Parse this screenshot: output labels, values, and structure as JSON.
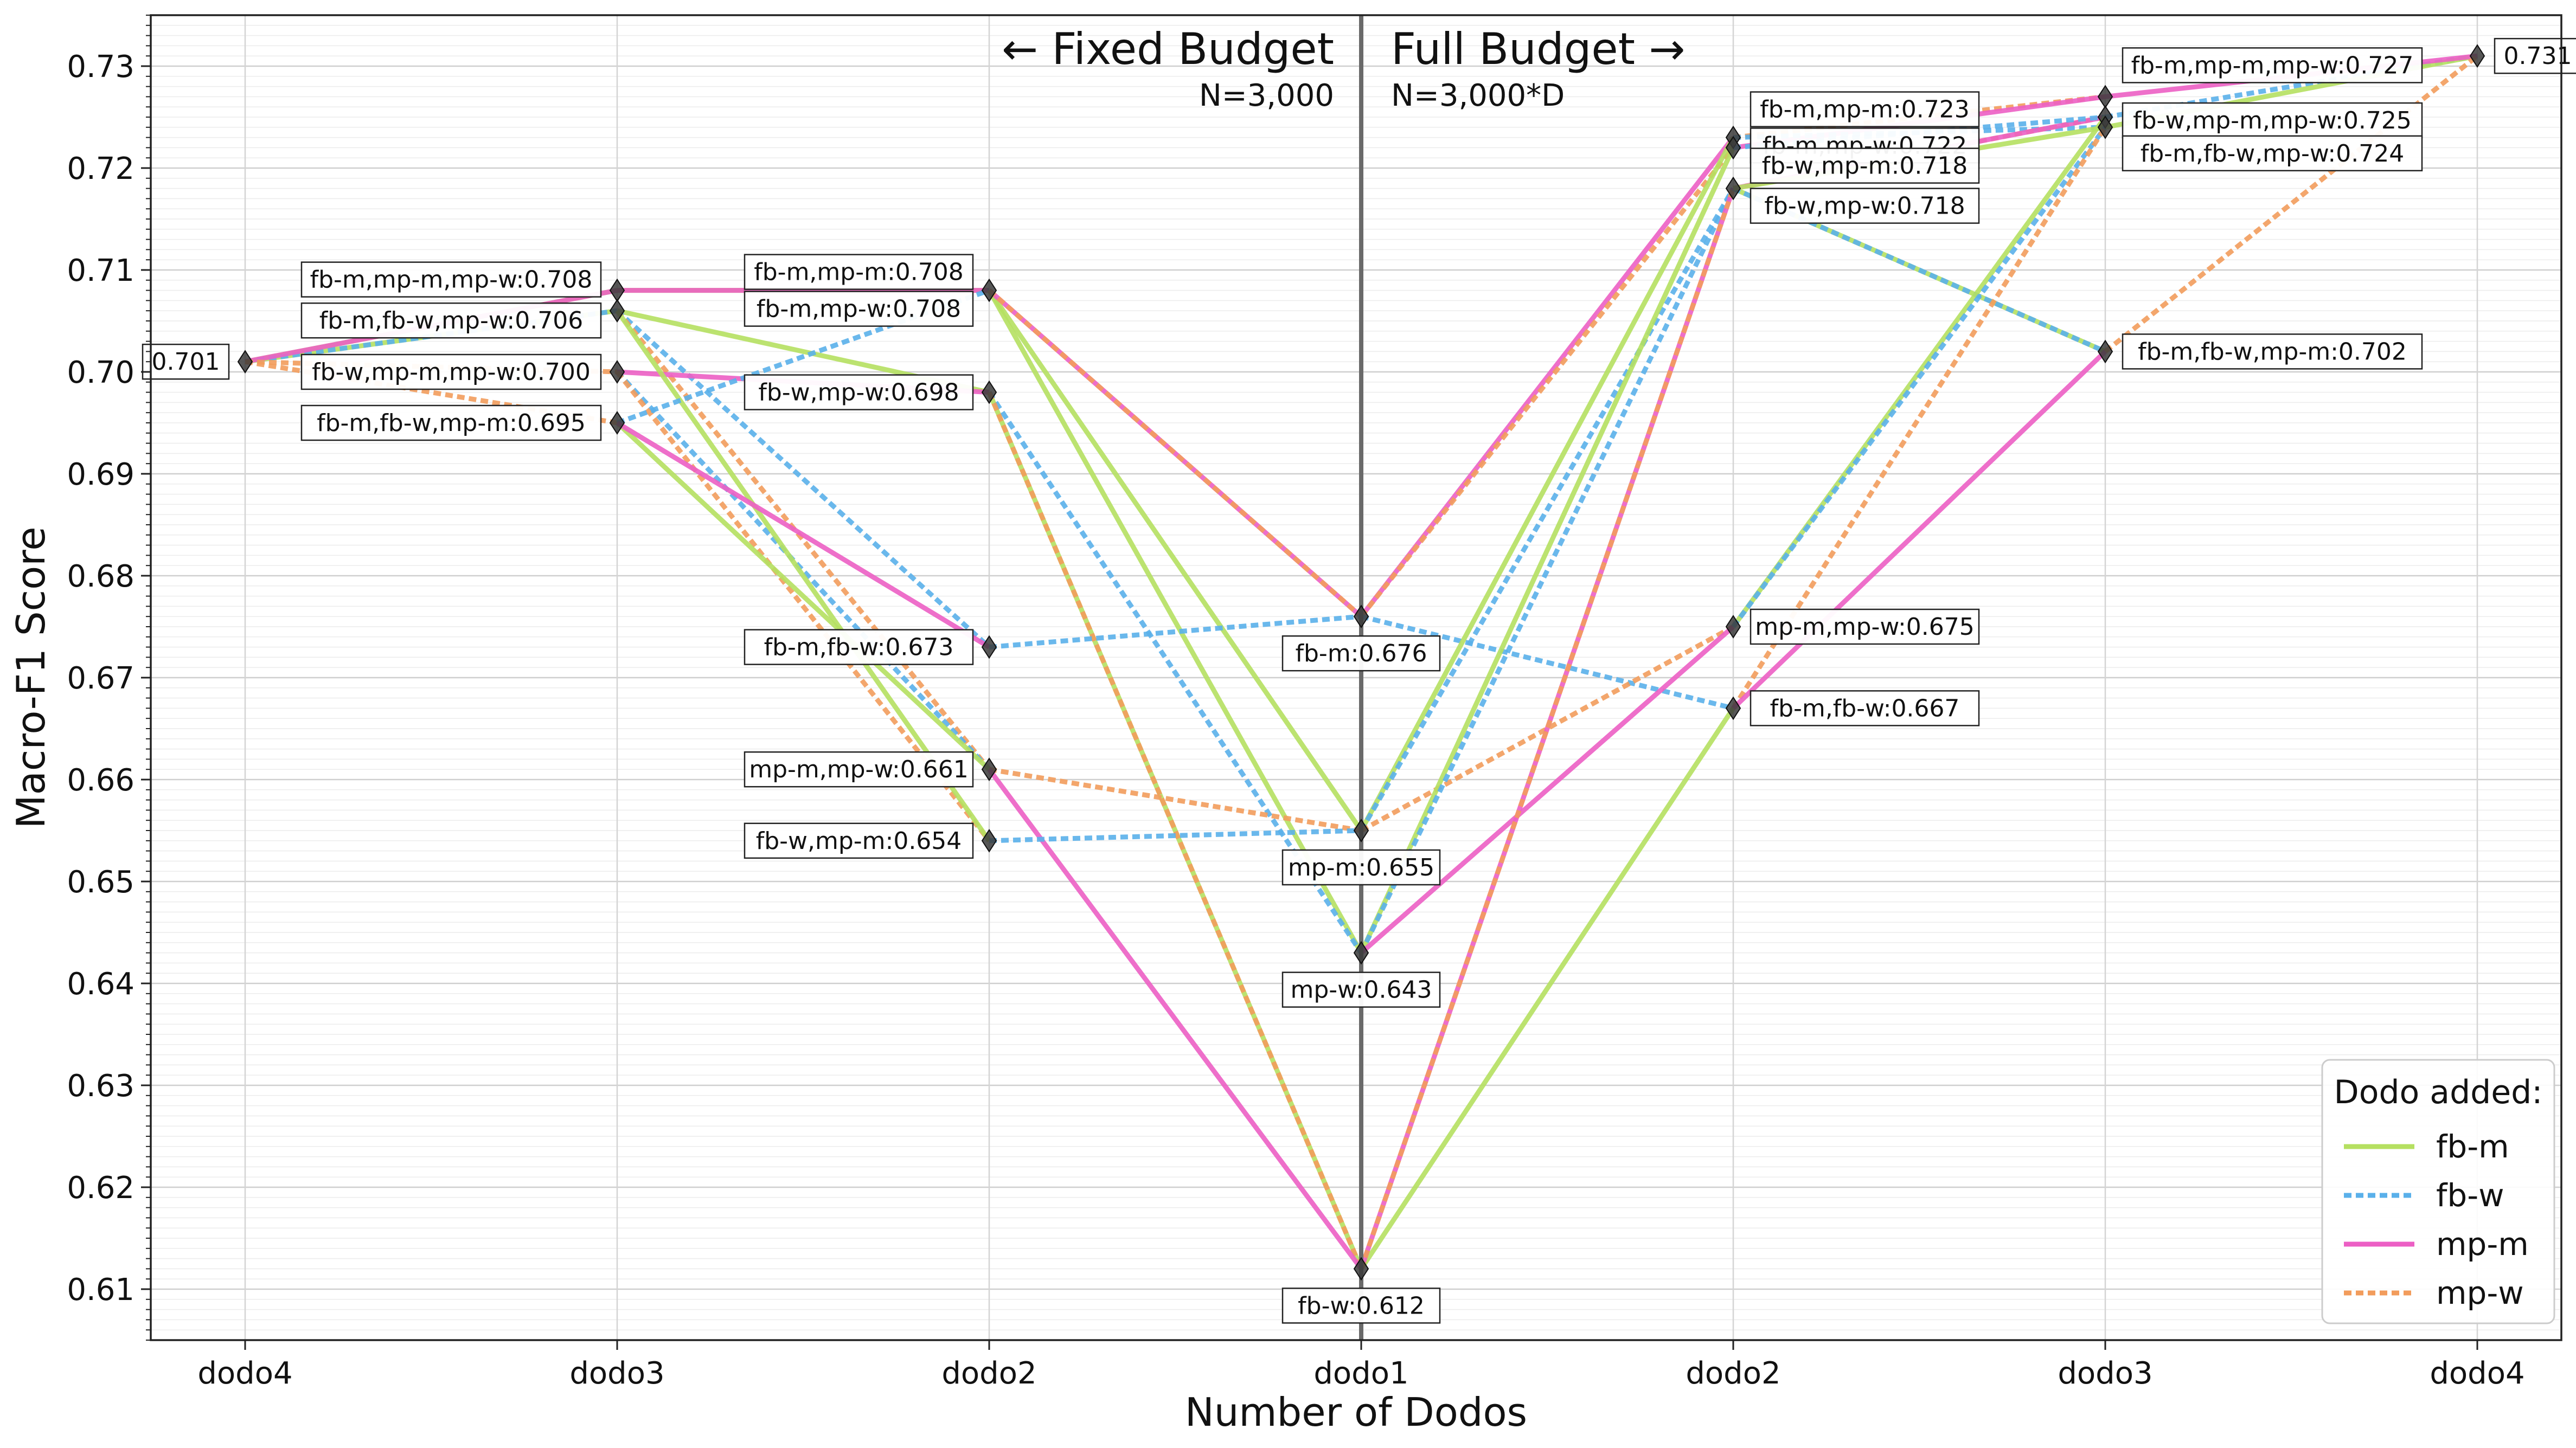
{
  "chart_data": {
    "type": "line",
    "xlabel": "Number of Dodos",
    "ylabel": "Macro-F1 Score",
    "categories": [
      "dodo4",
      "dodo3",
      "dodo2",
      "dodo1",
      "dodo2",
      "dodo3",
      "dodo4"
    ],
    "ylim": [
      0.605,
      0.735
    ],
    "yticks": [
      0.61,
      0.62,
      0.63,
      0.64,
      0.65,
      0.66,
      0.67,
      0.68,
      0.69,
      0.7,
      0.71,
      0.72,
      0.73
    ],
    "ytick_labels": [
      "0.61",
      "0.62",
      "0.63",
      "0.64",
      "0.65",
      "0.66",
      "0.67",
      "0.68",
      "0.69",
      "0.70",
      "0.71",
      "0.72",
      "0.73"
    ],
    "grid": true,
    "annotations": {
      "left_title": "← Fixed Budget",
      "left_subtitle": "N=3,000",
      "right_title": "Full Budget →",
      "right_subtitle": "N=3,000*D"
    },
    "legend": {
      "title": "Dodo added:",
      "placement": "bottom-right",
      "entries": [
        {
          "name": "fb-m",
          "color": "#b5e061",
          "dash": "solid"
        },
        {
          "name": "fb-w",
          "color": "#5ab0ea",
          "dash": "dotted"
        },
        {
          "name": "mp-m",
          "color": "#ec5fc4",
          "dash": "solid"
        },
        {
          "name": "mp-w",
          "color": "#f29c5c",
          "dash": "dotted"
        }
      ]
    },
    "points": [
      {
        "x": 0,
        "y": 0.701,
        "label": "0.701",
        "side": "left"
      },
      {
        "x": 1,
        "y": 0.708,
        "label": "fb-m,mp-m,mp-w:0.708",
        "side": "left"
      },
      {
        "x": 1,
        "y": 0.706,
        "label": "fb-m,fb-w,mp-w:0.706",
        "side": "left"
      },
      {
        "x": 1,
        "y": 0.7,
        "label": "fb-w,mp-m,mp-w:0.700",
        "side": "left"
      },
      {
        "x": 1,
        "y": 0.695,
        "label": "fb-m,fb-w,mp-m:0.695",
        "side": "left"
      },
      {
        "x": 2,
        "y": 0.708,
        "label": "fb-m,mp-m:0.708",
        "side": "left"
      },
      {
        "x": 2,
        "y": 0.708,
        "label": "fb-m,mp-w:0.708",
        "side": "left"
      },
      {
        "x": 2,
        "y": 0.698,
        "label": "fb-w,mp-w:0.698",
        "side": "left"
      },
      {
        "x": 2,
        "y": 0.673,
        "label": "fb-m,fb-w:0.673",
        "side": "left"
      },
      {
        "x": 2,
        "y": 0.661,
        "label": "mp-m,mp-w:0.661",
        "side": "left"
      },
      {
        "x": 2,
        "y": 0.654,
        "label": "fb-w,mp-m:0.654",
        "side": "left"
      },
      {
        "x": 3,
        "y": 0.676,
        "label": "fb-m:0.676",
        "side": "below"
      },
      {
        "x": 3,
        "y": 0.655,
        "label": "mp-m:0.655",
        "side": "below"
      },
      {
        "x": 3,
        "y": 0.643,
        "label": "mp-w:0.643",
        "side": "below"
      },
      {
        "x": 3,
        "y": 0.612,
        "label": "fb-w:0.612",
        "side": "below"
      },
      {
        "x": 4,
        "y": 0.723,
        "label": "fb-m,mp-m:0.723",
        "side": "right"
      },
      {
        "x": 4,
        "y": 0.722,
        "label": "fb-m,mp-w:0.722",
        "side": "right"
      },
      {
        "x": 4,
        "y": 0.718,
        "label": "fb-w,mp-m:0.718",
        "side": "right"
      },
      {
        "x": 4,
        "y": 0.718,
        "label": "fb-w,mp-w:0.718",
        "side": "right"
      },
      {
        "x": 4,
        "y": 0.675,
        "label": "mp-m,mp-w:0.675",
        "side": "right"
      },
      {
        "x": 4,
        "y": 0.667,
        "label": "fb-m,fb-w:0.667",
        "side": "right"
      },
      {
        "x": 5,
        "y": 0.727,
        "label": "fb-m,mp-m,mp-w:0.727",
        "side": "right"
      },
      {
        "x": 5,
        "y": 0.725,
        "label": "fb-w,mp-m,mp-w:0.725",
        "side": "right"
      },
      {
        "x": 5,
        "y": 0.724,
        "label": "fb-m,fb-w,mp-w:0.724",
        "side": "right"
      },
      {
        "x": 5,
        "y": 0.702,
        "label": "fb-m,fb-w,mp-m:0.702",
        "side": "right"
      },
      {
        "x": 6,
        "y": 0.731,
        "label": "0.731",
        "side": "right"
      }
    ],
    "segments": [
      {
        "series": "fb-m",
        "from": [
          0,
          0.701
        ],
        "to": [
          1,
          0.706
        ]
      },
      {
        "series": "fb-m",
        "from": [
          0,
          0.701
        ],
        "to": [
          1,
          0.708
        ]
      },
      {
        "series": "fb-w",
        "from": [
          0,
          0.701
        ],
        "to": [
          1,
          0.706
        ]
      },
      {
        "series": "mp-m",
        "from": [
          0,
          0.701
        ],
        "to": [
          1,
          0.708
        ]
      },
      {
        "series": "mp-w",
        "from": [
          0,
          0.701
        ],
        "to": [
          1,
          0.7
        ]
      },
      {
        "series": "mp-w",
        "from": [
          0,
          0.701
        ],
        "to": [
          1,
          0.695
        ]
      },
      {
        "series": "fb-m",
        "from": [
          1,
          0.708
        ],
        "to": [
          2,
          0.708
        ]
      },
      {
        "series": "mp-m",
        "from": [
          1,
          0.708
        ],
        "to": [
          2,
          0.708
        ]
      },
      {
        "series": "fb-m",
        "from": [
          1,
          0.706
        ],
        "to": [
          2,
          0.698
        ]
      },
      {
        "series": "fb-w",
        "from": [
          1,
          0.706
        ],
        "to": [
          2,
          0.673
        ]
      },
      {
        "series": "mp-w",
        "from": [
          1,
          0.706
        ],
        "to": [
          2,
          0.661
        ]
      },
      {
        "series": "fb-w",
        "from": [
          1,
          0.7
        ],
        "to": [
          2,
          0.661
        ]
      },
      {
        "series": "mp-m",
        "from": [
          1,
          0.7
        ],
        "to": [
          2,
          0.698
        ]
      },
      {
        "series": "mp-w",
        "from": [
          1,
          0.7
        ],
        "to": [
          2,
          0.654
        ]
      },
      {
        "series": "fb-m",
        "from": [
          1,
          0.706
        ],
        "to": [
          2,
          0.654
        ]
      },
      {
        "series": "fb-m",
        "from": [
          1,
          0.695
        ],
        "to": [
          2,
          0.661
        ]
      },
      {
        "series": "fb-w",
        "from": [
          1,
          0.695
        ],
        "to": [
          2,
          0.708
        ]
      },
      {
        "series": "mp-m",
        "from": [
          1,
          0.695
        ],
        "to": [
          2,
          0.673
        ]
      },
      {
        "series": "fb-m",
        "from": [
          2,
          0.708
        ],
        "to": [
          3,
          0.655
        ]
      },
      {
        "series": "fb-m",
        "from": [
          2,
          0.708
        ],
        "to": [
          3,
          0.643
        ]
      },
      {
        "series": "fb-m",
        "from": [
          2,
          0.698
        ],
        "to": [
          3,
          0.612
        ]
      },
      {
        "series": "mp-m",
        "from": [
          2,
          0.708
        ],
        "to": [
          3,
          0.676
        ]
      },
      {
        "series": "mp-w",
        "from": [
          2,
          0.708
        ],
        "to": [
          3,
          0.676
        ]
      },
      {
        "series": "fb-w",
        "from": [
          2,
          0.698
        ],
        "to": [
          3,
          0.643
        ]
      },
      {
        "series": "mp-w",
        "from": [
          2,
          0.698
        ],
        "to": [
          3,
          0.612
        ]
      },
      {
        "series": "fb-w",
        "from": [
          2,
          0.673
        ],
        "to": [
          3,
          0.676
        ]
      },
      {
        "series": "mp-w",
        "from": [
          2,
          0.661
        ],
        "to": [
          3,
          0.655
        ]
      },
      {
        "series": "mp-m",
        "from": [
          2,
          0.661
        ],
        "to": [
          3,
          0.612
        ]
      },
      {
        "series": "fb-w",
        "from": [
          2,
          0.654
        ],
        "to": [
          3,
          0.655
        ]
      },
      {
        "series": "mp-m",
        "from": [
          3,
          0.676
        ],
        "to": [
          4,
          0.723
        ]
      },
      {
        "series": "mp-w",
        "from": [
          3,
          0.676
        ],
        "to": [
          4,
          0.722
        ]
      },
      {
        "series": "fb-w",
        "from": [
          3,
          0.676
        ],
        "to": [
          4,
          0.667
        ]
      },
      {
        "series": "fb-m",
        "from": [
          3,
          0.655
        ],
        "to": [
          4,
          0.723
        ]
      },
      {
        "series": "fb-w",
        "from": [
          3,
          0.655
        ],
        "to": [
          4,
          0.718
        ]
      },
      {
        "series": "mp-w",
        "from": [
          3,
          0.655
        ],
        "to": [
          4,
          0.675
        ]
      },
      {
        "series": "fb-m",
        "from": [
          3,
          0.643
        ],
        "to": [
          4,
          0.722
        ]
      },
      {
        "series": "fb-w",
        "from": [
          3,
          0.643
        ],
        "to": [
          4,
          0.718
        ]
      },
      {
        "series": "mp-m",
        "from": [
          3,
          0.643
        ],
        "to": [
          4,
          0.675
        ]
      },
      {
        "series": "fb-m",
        "from": [
          3,
          0.612
        ],
        "to": [
          4,
          0.667
        ]
      },
      {
        "series": "mp-m",
        "from": [
          3,
          0.612
        ],
        "to": [
          4,
          0.718
        ]
      },
      {
        "series": "mp-w",
        "from": [
          3,
          0.612
        ],
        "to": [
          4,
          0.718
        ]
      },
      {
        "series": "mp-w",
        "from": [
          4,
          0.723
        ],
        "to": [
          5,
          0.727
        ]
      },
      {
        "series": "mp-m",
        "from": [
          4,
          0.722
        ],
        "to": [
          5,
          0.727
        ]
      },
      {
        "series": "fb-w",
        "from": [
          4,
          0.723
        ],
        "to": [
          5,
          0.724
        ]
      },
      {
        "series": "fb-m",
        "from": [
          4,
          0.718
        ],
        "to": [
          5,
          0.702
        ]
      },
      {
        "series": "mp-w",
        "from": [
          4,
          0.718
        ],
        "to": [
          5,
          0.725
        ]
      },
      {
        "series": "fb-w",
        "from": [
          4,
          0.718
        ],
        "to": [
          5,
          0.702
        ]
      },
      {
        "series": "mp-m",
        "from": [
          4,
          0.718
        ],
        "to": [
          5,
          0.725
        ]
      },
      {
        "series": "fb-m",
        "from": [
          4,
          0.718
        ],
        "to": [
          5,
          0.724
        ]
      },
      {
        "series": "fb-w",
        "from": [
          4,
          0.722
        ],
        "to": [
          5,
          0.725
        ]
      },
      {
        "series": "fb-m",
        "from": [
          4,
          0.675
        ],
        "to": [
          5,
          0.725
        ]
      },
      {
        "series": "fb-w",
        "from": [
          4,
          0.675
        ],
        "to": [
          5,
          0.724
        ]
      },
      {
        "series": "mp-w",
        "from": [
          4,
          0.667
        ],
        "to": [
          5,
          0.724
        ]
      },
      {
        "series": "mp-m",
        "from": [
          4,
          0.667
        ],
        "to": [
          5,
          0.702
        ]
      },
      {
        "series": "fb-w",
        "from": [
          5,
          0.725
        ],
        "to": [
          6,
          0.731
        ]
      },
      {
        "series": "fb-m",
        "from": [
          5,
          0.724
        ],
        "to": [
          6,
          0.731
        ]
      },
      {
        "series": "mp-m",
        "from": [
          5,
          0.727
        ],
        "to": [
          6,
          0.731
        ]
      },
      {
        "series": "mp-w",
        "from": [
          5,
          0.702
        ],
        "to": [
          6,
          0.731
        ]
      }
    ]
  }
}
